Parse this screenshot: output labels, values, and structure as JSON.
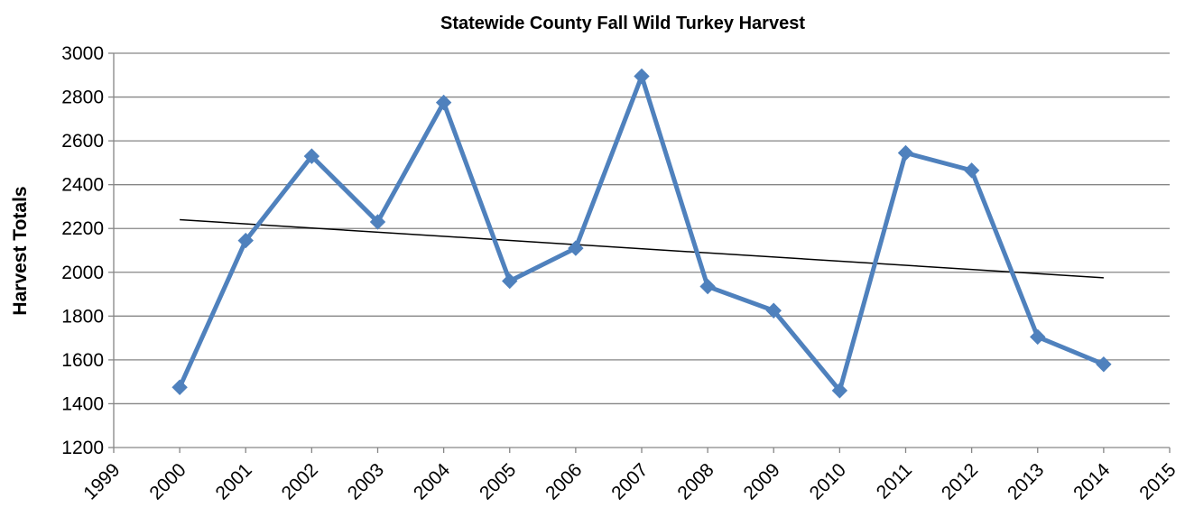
{
  "chart_data": {
    "type": "line",
    "title": "Statewide County Fall Wild Turkey Harvest",
    "ylabel": "Harvest Totals",
    "xlabel": "",
    "xlim": [
      1999,
      2015
    ],
    "ylim": [
      1200,
      3000
    ],
    "x_ticks": [
      1999,
      2000,
      2001,
      2002,
      2003,
      2004,
      2005,
      2006,
      2007,
      2008,
      2009,
      2010,
      2011,
      2012,
      2013,
      2014,
      2015
    ],
    "y_ticks": [
      1200,
      1400,
      1600,
      1800,
      2000,
      2200,
      2400,
      2600,
      2800,
      3000
    ],
    "grid": "horizontal",
    "legend": "none",
    "series": [
      {
        "color": "#4F81BD",
        "marker": "diamond",
        "x": [
          2000,
          2001,
          2002,
          2003,
          2004,
          2005,
          2006,
          2007,
          2008,
          2009,
          2010,
          2011,
          2012,
          2013,
          2014
        ],
        "values": [
          1475,
          2145,
          2530,
          2230,
          2775,
          1960,
          2110,
          2895,
          1935,
          1825,
          1460,
          2545,
          2465,
          1705,
          1580
        ]
      }
    ],
    "trendline": {
      "type": "linear",
      "color": "#000000",
      "x": [
        2000,
        2014
      ],
      "values": [
        2240,
        1975
      ]
    }
  }
}
